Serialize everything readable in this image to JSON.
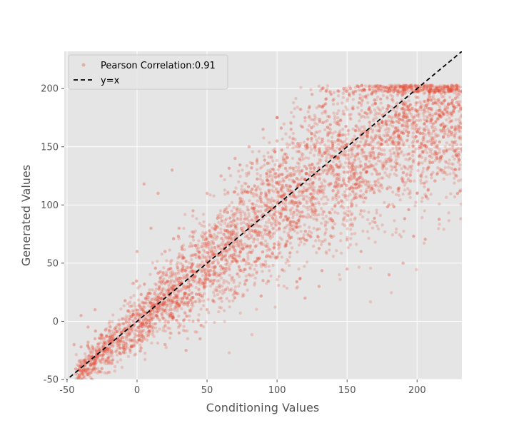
{
  "chart_data": {
    "type": "scatter",
    "xlabel": "Conditioning Values",
    "ylabel": "Generated Values",
    "xlim": [
      -52,
      232
    ],
    "ylim": [
      -50,
      232
    ],
    "x_ticks": [
      -50,
      0,
      50,
      100,
      150,
      200
    ],
    "y_ticks": [
      -50,
      0,
      50,
      100,
      150,
      200
    ],
    "grid": true,
    "legend_placement": "top-left",
    "series": [
      {
        "name": "Pearson Correlation:0.91",
        "kind": "scatter",
        "color": "#E24A33",
        "points": [
          [
            -45,
            -20
          ],
          [
            -40,
            -22
          ],
          [
            -35,
            -18
          ],
          [
            -30,
            -15
          ],
          [
            -25,
            -12
          ],
          [
            -20,
            -8
          ],
          [
            -15,
            -5
          ],
          [
            -10,
            -2
          ],
          [
            -5,
            2
          ],
          [
            0,
            5
          ],
          [
            5,
            8
          ],
          [
            10,
            12
          ],
          [
            15,
            18
          ],
          [
            20,
            22
          ],
          [
            25,
            28
          ],
          [
            30,
            32
          ],
          [
            35,
            38
          ],
          [
            40,
            42
          ],
          [
            45,
            48
          ],
          [
            50,
            52
          ],
          [
            55,
            58
          ],
          [
            60,
            62
          ],
          [
            65,
            68
          ],
          [
            70,
            72
          ],
          [
            75,
            78
          ],
          [
            80,
            82
          ],
          [
            85,
            88
          ],
          [
            90,
            92
          ],
          [
            95,
            98
          ],
          [
            100,
            102
          ],
          [
            105,
            108
          ],
          [
            110,
            112
          ],
          [
            115,
            118
          ],
          [
            120,
            122
          ],
          [
            125,
            128
          ],
          [
            130,
            132
          ],
          [
            135,
            138
          ],
          [
            140,
            142
          ],
          [
            145,
            148
          ],
          [
            150,
            152
          ],
          [
            155,
            156
          ],
          [
            160,
            160
          ],
          [
            165,
            164
          ],
          [
            170,
            168
          ],
          [
            175,
            172
          ],
          [
            180,
            176
          ],
          [
            185,
            180
          ],
          [
            190,
            183
          ],
          [
            195,
            186
          ],
          [
            200,
            188
          ],
          [
            205,
            189
          ],
          [
            210,
            190
          ],
          [
            215,
            190
          ],
          [
            220,
            190
          ],
          [
            225,
            188
          ],
          [
            230,
            186
          ],
          [
            20,
            60
          ],
          [
            30,
            80
          ],
          [
            40,
            95
          ],
          [
            50,
            110
          ],
          [
            60,
            125
          ],
          [
            70,
            140
          ],
          [
            80,
            150
          ],
          [
            90,
            165
          ],
          [
            100,
            175
          ],
          [
            60,
            20
          ],
          [
            80,
            40
          ],
          [
            100,
            55
          ],
          [
            120,
            70
          ],
          [
            140,
            80
          ],
          [
            160,
            95
          ],
          [
            180,
            100
          ],
          [
            200,
            110
          ],
          [
            -40,
            5
          ],
          [
            -30,
            10
          ],
          [
            0,
            60
          ],
          [
            10,
            80
          ],
          [
            25,
            130
          ],
          [
            5,
            118
          ],
          [
            15,
            110
          ],
          [
            -35,
            -5
          ],
          [
            150,
            70
          ],
          [
            160,
            60
          ],
          [
            170,
            85
          ],
          [
            180,
            40
          ],
          [
            190,
            50
          ],
          [
            120,
            20
          ],
          [
            130,
            30
          ],
          [
            150,
            45
          ],
          [
            200,
            200
          ],
          [
            210,
            198
          ],
          [
            220,
            196
          ],
          [
            230,
            195
          ],
          [
            190,
            200
          ],
          [
            170,
            120
          ],
          [
            185,
            130
          ],
          [
            195,
            140
          ],
          [
            140,
            190
          ],
          [
            130,
            185
          ],
          [
            120,
            175
          ],
          [
            110,
            165
          ],
          [
            100,
            155
          ],
          [
            125,
            195
          ],
          [
            135,
            198
          ],
          [
            30,
            -10
          ],
          [
            40,
            0
          ],
          [
            50,
            10
          ],
          [
            20,
            -20
          ],
          [
            35,
            -25
          ],
          [
            45,
            -15
          ],
          [
            70,
            25
          ],
          [
            90,
            35
          ]
        ]
      },
      {
        "name": "y=x",
        "kind": "line",
        "color": "#000000",
        "dash": "dashed",
        "points": [
          [
            -52,
            -52
          ],
          [
            232,
            232
          ]
        ]
      }
    ]
  }
}
